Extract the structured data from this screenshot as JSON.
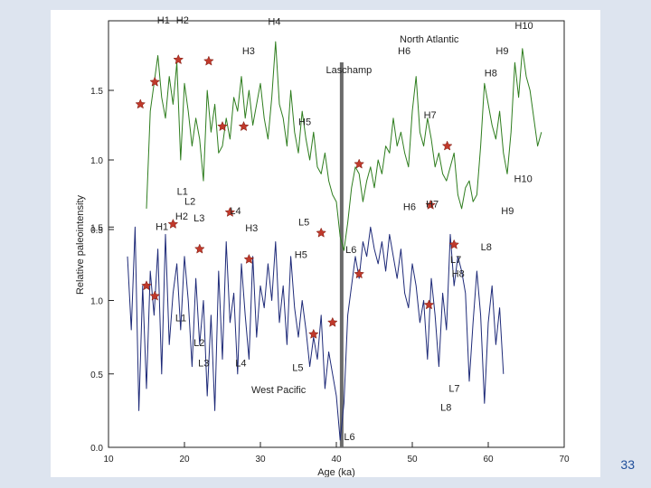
{
  "page_number": "33",
  "colors": {
    "background": "#dde4ef",
    "panel": "#ffffff",
    "north_atlantic_line": "#2e7d1e",
    "west_pacific_line": "#1e2a78",
    "star": "#c0392b",
    "laschamp_bar": "#6b6b6b",
    "page_number": "#1f4e9a"
  },
  "chart_data": {
    "type": "line",
    "xlabel": "Age (ka)",
    "ylabel": "Relative paleointensity",
    "xlim": [
      10,
      70
    ],
    "x_ticks": [
      "10",
      "20",
      "30",
      "40",
      "50",
      "60",
      "70"
    ],
    "laschamp": {
      "label": "Laschamp",
      "age": 40.7
    },
    "panels": [
      {
        "name": "North Atlantic",
        "ylim": [
          0.0,
          2.0
        ],
        "y_ticks": [
          "0.5",
          "1.0",
          "1.5"
        ],
        "series": [
          {
            "x": [
              15,
              15.5,
              16,
              16.5,
              17,
              17.5,
              18,
              18.5,
              19,
              19.5,
              20,
              20.5,
              21,
              21.5,
              22,
              22.5,
              23,
              23.5,
              24,
              24.5,
              25,
              25.5,
              26,
              26.5,
              27,
              27.5,
              28,
              28.5,
              29,
              29.5,
              30,
              30.5,
              31,
              31.5,
              32,
              32.5,
              33,
              33.5,
              34,
              34.5,
              35,
              35.5,
              36,
              36.5,
              37,
              37.5,
              38,
              38.5,
              39,
              39.5,
              40,
              40.5,
              41,
              41.5,
              42,
              42.5,
              43,
              43.5,
              44,
              44.5,
              45,
              45.5,
              46,
              46.5,
              47,
              47.5,
              48,
              48.5,
              49,
              49.5,
              50,
              50.5,
              51,
              51.5,
              52,
              52.5,
              53,
              53.5,
              54,
              54.5,
              55,
              55.5,
              56,
              56.5,
              57,
              57.5,
              58,
              58.5,
              59,
              59.5,
              60,
              60.5,
              61,
              61.5,
              62,
              62.5,
              63,
              63.5,
              64,
              64.5,
              65,
              65.5,
              66,
              66.5,
              67
            ],
            "y": [
              0.65,
              1.35,
              1.55,
              1.75,
              1.45,
              1.3,
              1.6,
              1.4,
              1.7,
              1.0,
              1.55,
              1.35,
              1.1,
              1.3,
              1.15,
              0.85,
              1.5,
              1.2,
              1.4,
              1.05,
              1.1,
              1.3,
              1.15,
              1.45,
              1.35,
              1.6,
              1.3,
              1.5,
              1.25,
              1.4,
              1.55,
              1.3,
              1.15,
              1.45,
              1.85,
              1.4,
              1.3,
              1.1,
              1.5,
              1.2,
              1.05,
              1.35,
              1.15,
              1.0,
              1.2,
              0.95,
              0.9,
              1.05,
              0.85,
              0.75,
              0.7,
              0.45,
              0.35,
              0.55,
              0.8,
              0.95,
              0.9,
              0.7,
              0.85,
              0.95,
              0.8,
              1.0,
              0.9,
              1.1,
              1.05,
              1.3,
              1.1,
              1.2,
              1.05,
              0.95,
              1.35,
              1.6,
              1.2,
              1.1,
              1.3,
              1.15,
              0.95,
              1.05,
              0.9,
              0.85,
              0.95,
              1.05,
              0.75,
              0.65,
              0.8,
              0.85,
              0.7,
              0.75,
              1.1,
              1.55,
              1.4,
              1.25,
              1.15,
              1.35,
              1.05,
              0.9,
              1.2,
              1.7,
              1.45,
              1.8,
              1.6,
              1.5,
              1.3,
              1.1,
              1.2
            ],
            "stars_x": [
              14.2,
              16.1,
              19.2,
              23.2,
              25.0,
              27.8,
              43.0,
              54.6
            ],
            "stars_y": [
              1.4,
              1.56,
              1.72,
              1.71,
              1.24,
              1.24,
              0.97,
              1.1
            ]
          }
        ],
        "peak_labels": [
          "H1",
          "H2",
          "H3",
          "H4",
          "H5",
          "H6",
          "H7",
          "H8",
          "H9",
          "H10"
        ],
        "trough_labels": [
          "L1",
          "L2",
          "L3",
          "L4",
          "L5",
          "L6",
          "H6",
          "H7",
          "L7",
          "L8",
          "H9",
          "H10"
        ]
      },
      {
        "name": "West Pacific",
        "ylim": [
          0.0,
          1.6
        ],
        "y_ticks": [
          "0.0",
          "0.5",
          "1.0",
          "1.5"
        ],
        "series": [
          {
            "x": [
              12.5,
              13,
              13.5,
              14,
              14.5,
              15,
              15.5,
              16,
              16.5,
              17,
              17.5,
              18,
              18.5,
              19,
              19.5,
              20,
              20.5,
              21,
              21.5,
              22,
              22.5,
              23,
              23.5,
              24,
              24.5,
              25,
              25.5,
              26,
              26.5,
              27,
              27.5,
              28,
              28.5,
              29,
              29.5,
              30,
              30.5,
              31,
              31.5,
              32,
              32.5,
              33,
              33.5,
              34,
              34.5,
              35,
              35.5,
              36,
              36.5,
              37,
              37.5,
              38,
              38.5,
              39,
              39.5,
              40,
              40.5,
              41,
              41.5,
              42,
              42.5,
              43,
              43.5,
              44,
              44.5,
              45,
              45.5,
              46,
              46.5,
              47,
              47.5,
              48,
              48.5,
              49,
              49.5,
              50,
              50.5,
              51,
              51.5,
              52,
              52.5,
              53,
              53.5,
              54,
              54.5,
              55,
              55.5,
              56,
              56.5,
              57,
              57.5,
              58,
              58.5,
              59,
              59.5,
              60,
              60.5,
              61,
              61.5,
              62
            ],
            "y": [
              1.3,
              0.8,
              1.5,
              0.25,
              1.1,
              0.4,
              1.2,
              0.9,
              1.35,
              0.5,
              1.45,
              0.7,
              1.05,
              1.25,
              0.8,
              1.3,
              1.0,
              0.55,
              1.15,
              0.7,
              1.0,
              0.35,
              0.9,
              0.25,
              1.2,
              0.6,
              1.4,
              0.85,
              1.05,
              0.5,
              1.25,
              0.9,
              0.6,
              1.3,
              0.75,
              1.1,
              0.95,
              1.25,
              1.0,
              1.4,
              0.85,
              1.1,
              0.7,
              1.3,
              0.95,
              0.75,
              1.0,
              0.8,
              0.55,
              0.75,
              0.6,
              0.9,
              0.4,
              0.65,
              0.5,
              0.35,
              0.05,
              0.3,
              0.9,
              1.1,
              1.3,
              1.15,
              1.4,
              1.3,
              1.5,
              1.35,
              1.25,
              1.4,
              1.2,
              1.45,
              1.3,
              1.15,
              1.35,
              1.05,
              0.95,
              1.25,
              1.1,
              0.85,
              1.0,
              0.6,
              1.15,
              0.9,
              0.55,
              1.05,
              0.8,
              1.45,
              1.1,
              1.3,
              1.2,
              1.05,
              0.45,
              0.85,
              1.2,
              0.9,
              0.3,
              0.85,
              1.1,
              0.7,
              0.95,
              0.5
            ],
            "stars_x": [
              15.0,
              16.1,
              18.5,
              22.0,
              26.0,
              28.5,
              37.0,
              38.0,
              39.5,
              43.0,
              52.2,
              52.4,
              55.5
            ],
            "stars_y": [
              1.1,
              1.03,
              1.52,
              1.35,
              1.6,
              1.28,
              0.77,
              1.46,
              0.85,
              1.18,
              0.97,
              1.65,
              1.38
            ]
          }
        ],
        "peak_labels": [
          "H1",
          "H2",
          "H3",
          "H5",
          "H8"
        ],
        "trough_labels": [
          "L1",
          "L2",
          "L3",
          "L4",
          "L5",
          "L6",
          "L7",
          "L8"
        ]
      }
    ]
  }
}
